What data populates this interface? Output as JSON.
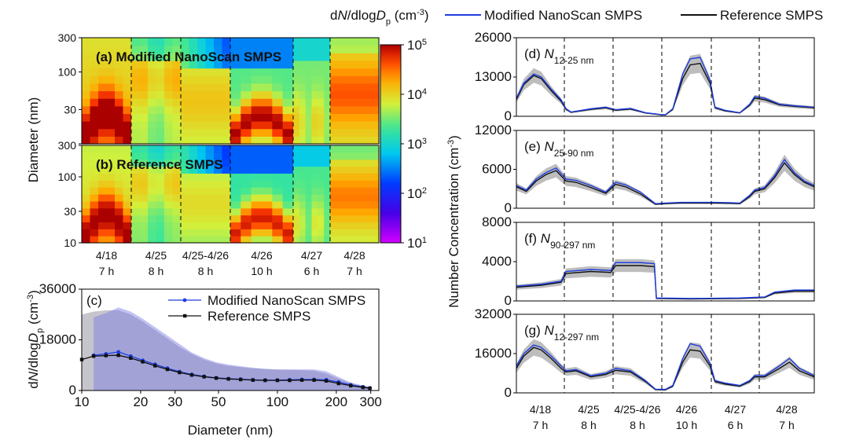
{
  "colorbar": {
    "label_parts": [
      "d",
      "N",
      "/dlog",
      "D",
      "p",
      " (cm",
      "-3",
      ")"
    ],
    "ticks": [
      {
        "base": "10",
        "exp": "5"
      },
      {
        "base": "10",
        "exp": "4"
      },
      {
        "base": "10",
        "exp": "3"
      },
      {
        "base": "10",
        "exp": "2"
      },
      {
        "base": "10",
        "exp": "1"
      }
    ],
    "tick_values": [
      100000,
      10000,
      1000,
      100,
      10
    ]
  },
  "legend": {
    "modified": "Modified NanoScan SMPS",
    "reference": "Reference SMPS",
    "colors": {
      "modified": "#1f3ee0",
      "reference": "#111111"
    }
  },
  "heatmaps": {
    "ylabel": "Diameter (nm)",
    "yticks": [
      "10",
      "30",
      "100",
      "300"
    ],
    "ytick_values": [
      10,
      30,
      100,
      300
    ],
    "panel_a_label": "(a) Modified NanoScan SMPS",
    "panel_b_label": "(b) Reference SMPS"
  },
  "periods": [
    {
      "date": "4/18",
      "duration": "7 h"
    },
    {
      "date": "4/25",
      "duration": "8 h"
    },
    {
      "date": "4/25-4/26",
      "duration": "8 h"
    },
    {
      "date": "4/26",
      "duration": "10 h"
    },
    {
      "date": "4/27",
      "duration": "6 h"
    },
    {
      "date": "4/28",
      "duration": "7 h"
    }
  ],
  "panel_c": {
    "label": "(c)",
    "ylabel_parts": [
      "d",
      "N",
      "/dlog",
      "D",
      "p",
      " (cm",
      "-3",
      ")"
    ],
    "xlabel": "Diameter (nm)",
    "xticks": [
      "10",
      "20",
      "30",
      "50",
      "100",
      "200",
      "300"
    ],
    "yticks": [
      "0",
      "18000",
      "36000"
    ]
  },
  "timeseries": {
    "ylabel_parts": [
      "Number Concentration (cm",
      "-3",
      ")"
    ],
    "panels": [
      {
        "label_pre": "(d) ",
        "label_main": "N",
        "label_sub": "12-25 nm",
        "yticks": [
          "0",
          "13000",
          "26000"
        ]
      },
      {
        "label_pre": "(e) ",
        "label_main": "N",
        "label_sub": "25-90 nm",
        "yticks": [
          "0",
          "6000",
          "12000"
        ]
      },
      {
        "label_pre": "(f) ",
        "label_main": "N",
        "label_sub": "90-297 nm",
        "yticks": [
          "0",
          "4000",
          "8000"
        ]
      },
      {
        "label_pre": "(g) ",
        "label_main": "N",
        "label_sub": "12-297 nm",
        "yticks": [
          "0",
          "16000",
          "32000"
        ]
      }
    ]
  },
  "chart_data": [
    {
      "type": "heatmap",
      "title": "(a) Modified NanoScan SMPS",
      "ylabel": "Diameter (nm)",
      "ylim": [
        10,
        300
      ],
      "yscale": "log",
      "color_scale": "log",
      "color_range": [
        10,
        100000
      ],
      "categories": [
        "4/18 7 h",
        "4/25 8 h",
        "4/25-4/26 8 h",
        "4/26 10 h",
        "4/27 6 h",
        "4/28 7 h"
      ]
    },
    {
      "type": "heatmap",
      "title": "(b) Reference SMPS",
      "ylabel": "Diameter (nm)",
      "ylim": [
        10,
        300
      ],
      "yscale": "log",
      "color_scale": "log",
      "color_range": [
        10,
        100000
      ],
      "categories": [
        "4/18 7 h",
        "4/25 8 h",
        "4/25-4/26 8 h",
        "4/26 10 h",
        "4/27 6 h",
        "4/28 7 h"
      ]
    },
    {
      "type": "line",
      "title": "(c)",
      "xlabel": "Diameter (nm)",
      "ylabel": "dN/dlogDp (cm-3)",
      "xscale": "log",
      "xlim": [
        10,
        330
      ],
      "ylim": [
        0,
        36000
      ],
      "series": [
        {
          "name": "Modified NanoScan SMPS",
          "x": [
            11.5,
            13.3,
            15.4,
            17.8,
            20.5,
            23.7,
            27.4,
            31.6,
            36.5,
            42.2,
            48.7,
            56.2,
            64.9,
            75.0,
            86.6,
            100,
            115.5,
            133.4,
            154.0,
            177.8,
            205.4,
            237.1,
            273.8,
            297
          ],
          "y": [
            12500,
            13000,
            13700,
            12200,
            10700,
            9300,
            7900,
            6700,
            5700,
            5000,
            4500,
            4200,
            4000,
            3800,
            3700,
            3700,
            3800,
            3900,
            3900,
            3800,
            3000,
            2000,
            1300,
            900
          ],
          "band_upper": [
            26000,
            27500,
            29500,
            28000,
            25500,
            22500,
            19500,
            16500,
            13500,
            11500,
            10000,
            9200,
            8600,
            8100,
            7700,
            7500,
            7500,
            7500,
            7500,
            6800,
            4800,
            2800,
            1800,
            1300
          ]
        },
        {
          "name": "Reference SMPS",
          "x": [
            10,
            11.5,
            13.3,
            15.4,
            17.8,
            20.5,
            23.7,
            27.4,
            31.6,
            36.5,
            42.2,
            48.7,
            56.2,
            64.9,
            75.0,
            86.6,
            100,
            115.5,
            133.4,
            154.0,
            177.8,
            205.4,
            237.1,
            273.8,
            297
          ],
          "y": [
            11000,
            12200,
            12400,
            12500,
            11500,
            10200,
            8800,
            7500,
            6400,
            5500,
            4900,
            4400,
            4100,
            3900,
            3700,
            3600,
            3600,
            3600,
            3700,
            3700,
            3400,
            2500,
            1700,
            1100,
            800
          ],
          "band_upper": [
            27000,
            28000,
            28500,
            28500,
            27000,
            24500,
            21500,
            18500,
            15500,
            13000,
            11000,
            9600,
            8800,
            8300,
            7900,
            7600,
            7400,
            7300,
            7200,
            7000,
            6000,
            4200,
            2600,
            1600,
            1100
          ]
        }
      ]
    },
    {
      "type": "line",
      "title": "(d) N12-25 nm",
      "ylabel": "Number Concentration (cm-3)",
      "ylim": [
        0,
        26000
      ],
      "categories": [
        "4/18 7 h",
        "4/25 8 h",
        "4/25-4/26 8 h",
        "4/26 10 h",
        "4/27 6 h",
        "4/28 7 h"
      ],
      "series": [
        {
          "name": "Modified NanoScan SMPS",
          "x": [
            0,
            0.15,
            0.35,
            0.5,
            0.7,
            0.9,
            1.0,
            1.1,
            1.5,
            1.8,
            2.0,
            2.3,
            2.6,
            2.9,
            3.0,
            3.15,
            3.35,
            3.5,
            3.7,
            3.9,
            4.0,
            4.2,
            4.5,
            4.7,
            4.8,
            5.0,
            5.3,
            5.6,
            6.0
          ],
          "y": [
            6000,
            11000,
            14000,
            13000,
            9000,
            5500,
            2500,
            1400,
            2500,
            3000,
            2200,
            2600,
            1200,
            600,
            500,
            2500,
            14000,
            19000,
            19500,
            12000,
            3000,
            2000,
            1200,
            4000,
            6500,
            6000,
            4000,
            3500,
            3000
          ]
        },
        {
          "name": "Reference SMPS",
          "x": [
            0,
            0.15,
            0.35,
            0.5,
            0.7,
            0.9,
            1.0,
            1.1,
            1.5,
            1.8,
            2.0,
            2.3,
            2.6,
            2.9,
            3.0,
            3.15,
            3.35,
            3.5,
            3.7,
            3.9,
            4.0,
            4.2,
            4.5,
            4.7,
            4.8,
            5.0,
            5.3,
            5.6,
            6.0
          ],
          "y": [
            5500,
            10500,
            13500,
            12500,
            8500,
            5000,
            2300,
            1300,
            2300,
            2800,
            2000,
            2400,
            1100,
            500,
            400,
            2300,
            12500,
            17000,
            17500,
            11000,
            2800,
            1800,
            1100,
            3700,
            6000,
            5500,
            3800,
            3300,
            2800
          ]
        }
      ]
    },
    {
      "type": "line",
      "title": "(e) N25-90 nm",
      "ylabel": "Number Concentration (cm-3)",
      "ylim": [
        0,
        12000
      ],
      "categories": [
        "4/18 7 h",
        "4/25 8 h",
        "4/25-4/26 8 h",
        "4/26 10 h",
        "4/27 6 h",
        "4/28 7 h"
      ],
      "series": [
        {
          "name": "Modified NanoScan SMPS",
          "x": [
            0,
            0.2,
            0.4,
            0.6,
            0.8,
            1.0,
            1.2,
            1.5,
            1.8,
            2.0,
            2.2,
            2.5,
            2.8,
            3.0,
            3.3,
            3.6,
            4.0,
            4.3,
            4.5,
            4.7,
            4.8,
            5.0,
            5.2,
            5.4,
            5.6,
            5.8,
            6.0
          ],
          "y": [
            3500,
            2800,
            4500,
            5500,
            6200,
            4500,
            4300,
            3500,
            2500,
            4000,
            3600,
            2500,
            700,
            800,
            900,
            900,
            900,
            850,
            800,
            2000,
            2800,
            3200,
            5000,
            7500,
            5500,
            4200,
            3500
          ]
        },
        {
          "name": "Reference SMPS",
          "x": [
            0,
            0.2,
            0.4,
            0.6,
            0.8,
            1.0,
            1.2,
            1.5,
            1.8,
            2.0,
            2.2,
            2.5,
            2.8,
            3.0,
            3.3,
            3.6,
            4.0,
            4.3,
            4.5,
            4.7,
            4.8,
            5.0,
            5.2,
            5.4,
            5.6,
            5.8,
            6.0
          ],
          "y": [
            3300,
            2600,
            4200,
            5200,
            5800,
            4200,
            4000,
            3200,
            2300,
            3700,
            3300,
            2200,
            600,
            700,
            800,
            800,
            800,
            750,
            700,
            1800,
            2600,
            3000,
            4700,
            7000,
            5200,
            4000,
            3300
          ]
        }
      ]
    },
    {
      "type": "line",
      "title": "(f) N90-297 nm",
      "ylabel": "Number Concentration (cm-3)",
      "ylim": [
        0,
        8000
      ],
      "categories": [
        "4/18 7 h",
        "4/25 8 h",
        "4/25-4/26 8 h",
        "4/26 10 h",
        "4/27 6 h",
        "4/28 7 h"
      ],
      "series": [
        {
          "name": "Modified NanoScan SMPS",
          "x": [
            0,
            0.5,
            0.9,
            1.0,
            1.5,
            1.9,
            2.0,
            2.5,
            2.78,
            2.82,
            3.5,
            4.5,
            5.0,
            5.2,
            5.6,
            6.0
          ],
          "y": [
            1500,
            1700,
            2000,
            3000,
            3200,
            3100,
            3900,
            3900,
            3800,
            300,
            250,
            300,
            400,
            900,
            1100,
            1100
          ]
        },
        {
          "name": "Reference SMPS",
          "x": [
            0,
            0.5,
            0.9,
            1.0,
            1.5,
            1.9,
            2.0,
            2.5,
            2.78,
            2.82,
            3.5,
            4.5,
            5.0,
            5.2,
            5.6,
            6.0
          ],
          "y": [
            1400,
            1600,
            1900,
            2800,
            3000,
            2900,
            3600,
            3600,
            3500,
            250,
            200,
            250,
            350,
            800,
            1000,
            1000
          ]
        }
      ]
    },
    {
      "type": "line",
      "title": "(g) N12-297 nm",
      "ylabel": "Number Concentration (cm-3)",
      "ylim": [
        0,
        32000
      ],
      "categories": [
        "4/18 7 h",
        "4/25 8 h",
        "4/25-4/26 8 h",
        "4/26 10 h",
        "4/27 6 h",
        "4/28 7 h"
      ],
      "series": [
        {
          "name": "Modified NanoScan SMPS",
          "x": [
            0,
            0.15,
            0.35,
            0.5,
            0.7,
            0.9,
            1.0,
            1.2,
            1.5,
            1.8,
            2.0,
            2.3,
            2.6,
            2.8,
            3.0,
            3.15,
            3.35,
            3.5,
            3.7,
            3.9,
            4.0,
            4.2,
            4.5,
            4.7,
            4.8,
            5.0,
            5.3,
            5.5,
            5.7,
            6.0
          ],
          "y": [
            11000,
            16000,
            19500,
            18500,
            15000,
            11000,
            9000,
            9500,
            7000,
            8000,
            10000,
            9000,
            5000,
            1500,
            1400,
            3000,
            14000,
            20000,
            19000,
            12000,
            5000,
            4000,
            3000,
            5000,
            7000,
            7000,
            11000,
            14000,
            10000,
            7000
          ]
        },
        {
          "name": "Reference SMPS",
          "x": [
            0,
            0.15,
            0.35,
            0.5,
            0.7,
            0.9,
            1.0,
            1.2,
            1.5,
            1.8,
            2.0,
            2.3,
            2.6,
            2.8,
            3.0,
            3.15,
            3.35,
            3.5,
            3.7,
            3.9,
            4.0,
            4.2,
            4.5,
            4.7,
            4.8,
            5.0,
            5.3,
            5.5,
            5.7,
            6.0
          ],
          "y": [
            10000,
            15000,
            18500,
            17500,
            14000,
            10000,
            8500,
            9000,
            6500,
            7500,
            9200,
            8500,
            4600,
            1300,
            1200,
            2700,
            12500,
            17500,
            17000,
            11000,
            4600,
            3600,
            2700,
            4600,
            6500,
            6500,
            10000,
            12500,
            9000,
            6500
          ]
        }
      ]
    }
  ]
}
